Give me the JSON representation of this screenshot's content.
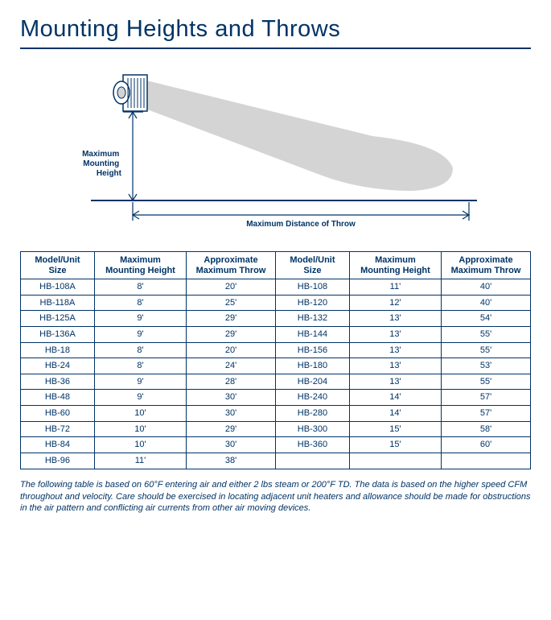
{
  "title": "Mounting Heights and Throws",
  "diagram": {
    "label_height_l1": "Maximum",
    "label_height_l2": "Mounting",
    "label_height_l3": "Height",
    "label_throw": "Maximum Distance of Throw",
    "shape_fill": "#d4d4d4",
    "line_color": "#003366",
    "label_fontsize": 10
  },
  "table": {
    "headers": {
      "model": "Model/Unit\nSize",
      "height": "Maximum\nMounting Height",
      "throw": "Approximate\nMaximum Throw"
    },
    "left": [
      {
        "model": "HB-108A",
        "height": "8'",
        "throw": "20'"
      },
      {
        "model": "HB-118A",
        "height": "8'",
        "throw": "25'"
      },
      {
        "model": "HB-125A",
        "height": "9'",
        "throw": "29'"
      },
      {
        "model": "HB-136A",
        "height": "9'",
        "throw": "29'"
      },
      {
        "model": "HB-18",
        "height": "8'",
        "throw": "20'"
      },
      {
        "model": "HB-24",
        "height": "8'",
        "throw": "24'"
      },
      {
        "model": "HB-36",
        "height": "9'",
        "throw": "28'"
      },
      {
        "model": "HB-48",
        "height": "9'",
        "throw": "30'"
      },
      {
        "model": "HB-60",
        "height": "10'",
        "throw": "30'"
      },
      {
        "model": "HB-72",
        "height": "10'",
        "throw": "29'"
      },
      {
        "model": "HB-84",
        "height": "10'",
        "throw": "30'"
      },
      {
        "model": "HB-96",
        "height": "11'",
        "throw": "38'"
      }
    ],
    "right": [
      {
        "model": "HB-108",
        "height": "11'",
        "throw": "40'"
      },
      {
        "model": "HB-120",
        "height": "12'",
        "throw": "40'"
      },
      {
        "model": "HB-132",
        "height": "13'",
        "throw": "54'"
      },
      {
        "model": "HB-144",
        "height": "13'",
        "throw": "55'"
      },
      {
        "model": "HB-156",
        "height": "13'",
        "throw": "55'"
      },
      {
        "model": "HB-180",
        "height": "13'",
        "throw": "53'"
      },
      {
        "model": "HB-204",
        "height": "13'",
        "throw": "55'"
      },
      {
        "model": "HB-240",
        "height": "14'",
        "throw": "57'"
      },
      {
        "model": "HB-280",
        "height": "14'",
        "throw": "57'"
      },
      {
        "model": "HB-300",
        "height": "15'",
        "throw": "58'"
      },
      {
        "model": "HB-360",
        "height": "15'",
        "throw": "60'"
      },
      {
        "model": "",
        "height": "",
        "throw": ""
      }
    ],
    "col_widths_pct": [
      14.5,
      18,
      17.5,
      14.5,
      18,
      17.5
    ],
    "border_color": "#003366",
    "header_fontsize": 11,
    "cell_fontsize": 11
  },
  "footnote": "The following table is based on 60°F entering air and either 2 lbs steam or 200°F TD. The data is based on the higher speed CFM throughout and velocity.  Care should be exercised in locating adjacent unit heaters and allowance should be made for obstructions in the air pattern and conflicting air currents from other air moving devices."
}
